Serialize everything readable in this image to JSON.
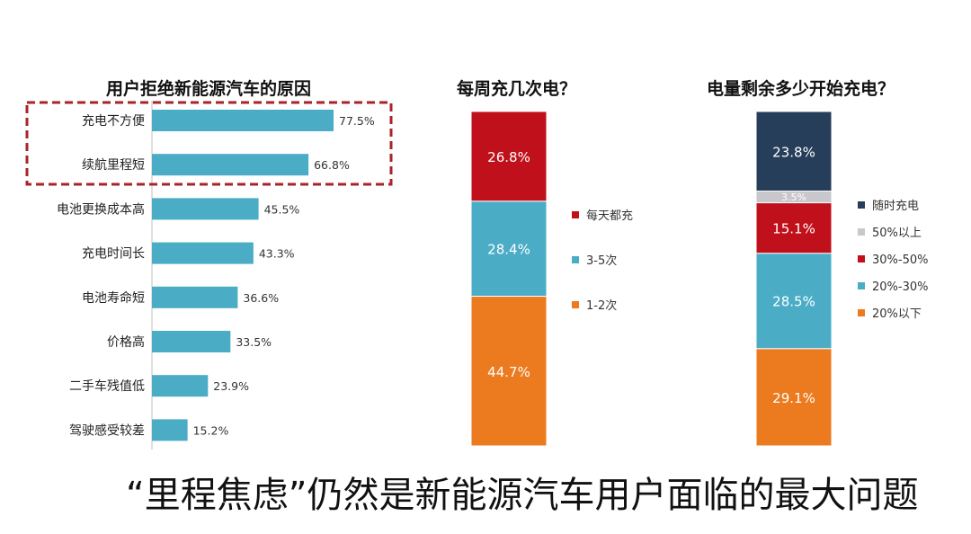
{
  "caption": "“里程焦虑”仍然是新能源汽车用户面临的最大问题",
  "colors": {
    "bar_blue": "#4bacc6",
    "red": "#c0101c",
    "orange": "#ec7a1f",
    "navy": "#263e5a",
    "light_gray": "#c8c8cc",
    "highlight_border": "#a8232a"
  },
  "chart_data": [
    {
      "type": "bar",
      "orientation": "horizontal",
      "title": "用户拒绝新能源汽车的原因",
      "categories": [
        "充电不方便",
        "续航里程短",
        "电池更换成本高",
        "充电时间长",
        "电池寿命短",
        "价格高",
        "二手车残值低",
        "驾驶感受较差"
      ],
      "values": [
        77.5,
        66.8,
        45.5,
        43.3,
        36.6,
        33.5,
        23.9,
        15.2
      ],
      "value_labels": [
        "77.5%",
        "66.8%",
        "45.5%",
        "43.3%",
        "36.6%",
        "33.5%",
        "23.9%",
        "15.2%"
      ],
      "highlighted_categories": [
        "充电不方便",
        "续航里程短"
      ],
      "color": "#4bacc6",
      "xlim": [
        0,
        100
      ]
    },
    {
      "type": "bar",
      "stacked": true,
      "title": "每周充几次电？",
      "series": [
        {
          "name": "1-2次",
          "value": 44.7,
          "label": "44.7%",
          "color": "#ec7a1f"
        },
        {
          "name": "3-5次",
          "value": 28.4,
          "label": "28.4%",
          "color": "#4bacc6"
        },
        {
          "name": "每天都充",
          "value": 26.8,
          "label": "26.8%",
          "color": "#c0101c"
        }
      ],
      "legend_order": [
        "每天都充",
        "3-5次",
        "1-2次"
      ],
      "legend": "right",
      "ylim": [
        0,
        100
      ]
    },
    {
      "type": "bar",
      "stacked": true,
      "title": "电量剩余多少开始充电？",
      "series": [
        {
          "name": "20%以下",
          "value": 29.1,
          "label": "29.1%",
          "color": "#ec7a1f"
        },
        {
          "name": "20%-30%",
          "value": 28.5,
          "label": "28.5%",
          "color": "#4bacc6"
        },
        {
          "name": "30%-50%",
          "value": 15.1,
          "label": "15.1%",
          "color": "#c0101c"
        },
        {
          "name": "50%以上",
          "value": 3.5,
          "label": "3.5%",
          "color": "#c8c8cc"
        },
        {
          "name": "随时充电",
          "value": 23.8,
          "label": "23.8%",
          "color": "#263e5a"
        }
      ],
      "legend_order": [
        "随时充电",
        "50%以上",
        "30%-50%",
        "20%-30%",
        "20%以下"
      ],
      "legend": "right",
      "ylim": [
        0,
        100
      ]
    }
  ]
}
